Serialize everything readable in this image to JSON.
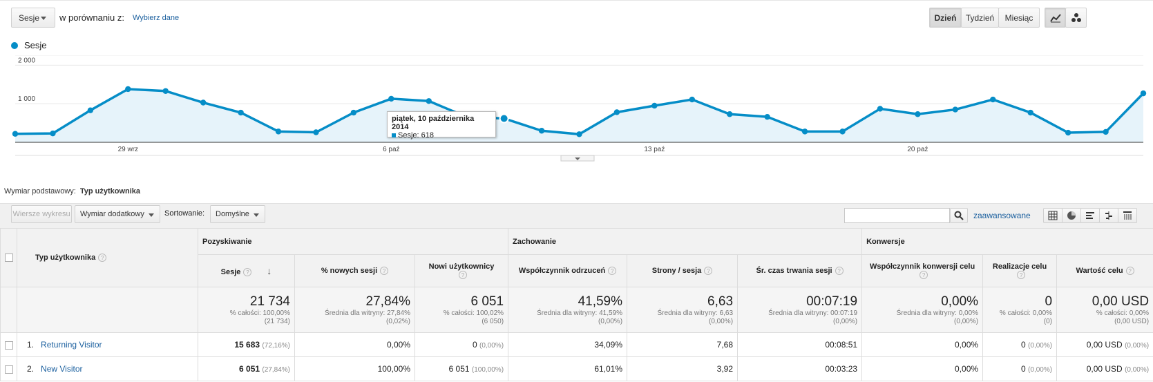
{
  "toolbar": {
    "metric": "Sesje",
    "compare_text": "w porównaniu z:",
    "select_data": "Wybierz dane",
    "periods": [
      "Dzień",
      "Tydzień",
      "Miesiąc"
    ],
    "active_period": "Dzień"
  },
  "chart_data": {
    "type": "area",
    "legend": "Sesje",
    "y_ticks": [
      "2 000",
      "1 000"
    ],
    "ylim": [
      0,
      2100
    ],
    "x_tick_labels": [
      "29 wrz",
      "6 paź",
      "13 paź",
      "20 paź"
    ],
    "values": [
      220,
      230,
      830,
      1380,
      1330,
      1030,
      770,
      280,
      260,
      770,
      1130,
      1070,
      660,
      618,
      300,
      210,
      780,
      950,
      1110,
      730,
      660,
      280,
      280,
      870,
      730,
      850,
      1110,
      770,
      250,
      270,
      1270
    ],
    "color": "#058dc7",
    "tooltip": {
      "date": "piątek, 10 października 2014",
      "series": "Sesje: 618"
    }
  },
  "dimension": {
    "label": "Wymiar podstawowy:",
    "value": "Typ użytkownika"
  },
  "controls": {
    "plot_rows": "Wiersze wykresu",
    "secondary_dim": "Wymiar dodatkowy",
    "sort_label": "Sortowanie:",
    "sort_value": "Domyślne",
    "advanced": "zaawansowane"
  },
  "table": {
    "groups": [
      "Pozyskiwanie",
      "Zachowanie",
      "Konwersje"
    ],
    "dim_header": "Typ użytkownika",
    "headers": [
      "Sesje",
      "% nowych sesji",
      "Nowi użytkownicy",
      "Współczynnik odrzuceń",
      "Strony / sesja",
      "Śr. czas trwania sesji",
      "Współczynnik konwersji celu",
      "Realizacje celu",
      "Wartość celu"
    ],
    "totals": [
      {
        "big": "21 734",
        "sub1": "% całości: 100,00%",
        "sub2": "(21 734)"
      },
      {
        "big": "27,84%",
        "sub1": "Średnia dla witryny: 27,84%",
        "sub2": "(0,02%)"
      },
      {
        "big": "6 051",
        "sub1": "% całości: 100,02%",
        "sub2": "(6 050)"
      },
      {
        "big": "41,59%",
        "sub1": "Średnia dla witryny: 41,59%",
        "sub2": "(0,00%)"
      },
      {
        "big": "6,63",
        "sub1": "Średnia dla witryny: 6,63",
        "sub2": "(0,00%)"
      },
      {
        "big": "00:07:19",
        "sub1": "Średnia dla witryny: 00:07:19",
        "sub2": "(0,00%)"
      },
      {
        "big": "0,00%",
        "sub1": "Średnia dla witryny: 0,00%",
        "sub2": "(0,00%)"
      },
      {
        "big": "0",
        "sub1": "% całości: 0,00%",
        "sub2": "(0)"
      },
      {
        "big": "0,00 USD",
        "sub1": "% całości: 0,00%",
        "sub2": "(0,00 USD)"
      }
    ],
    "rows": [
      {
        "idx": "1.",
        "name": "Returning Visitor",
        "sessions": "15 683",
        "sessions_pct": "(72,16%)",
        "new_pct": "0,00%",
        "new_users": "0",
        "new_users_pct": "(0,00%)",
        "bounce": "34,09%",
        "pages": "7,68",
        "duration": "00:08:51",
        "conv": "0,00%",
        "goals": "0",
        "goals_pct": "(0,00%)",
        "value": "0,00 USD",
        "value_pct": "(0,00%)"
      },
      {
        "idx": "2.",
        "name": "New Visitor",
        "sessions": "6 051",
        "sessions_pct": "(27,84%)",
        "new_pct": "100,00%",
        "new_users": "6 051",
        "new_users_pct": "(100,00%)",
        "bounce": "61,01%",
        "pages": "3,92",
        "duration": "00:03:23",
        "conv": "0,00%",
        "goals": "0",
        "goals_pct": "(0,00%)",
        "value": "0,00 USD",
        "value_pct": "(0,00%)"
      }
    ]
  }
}
